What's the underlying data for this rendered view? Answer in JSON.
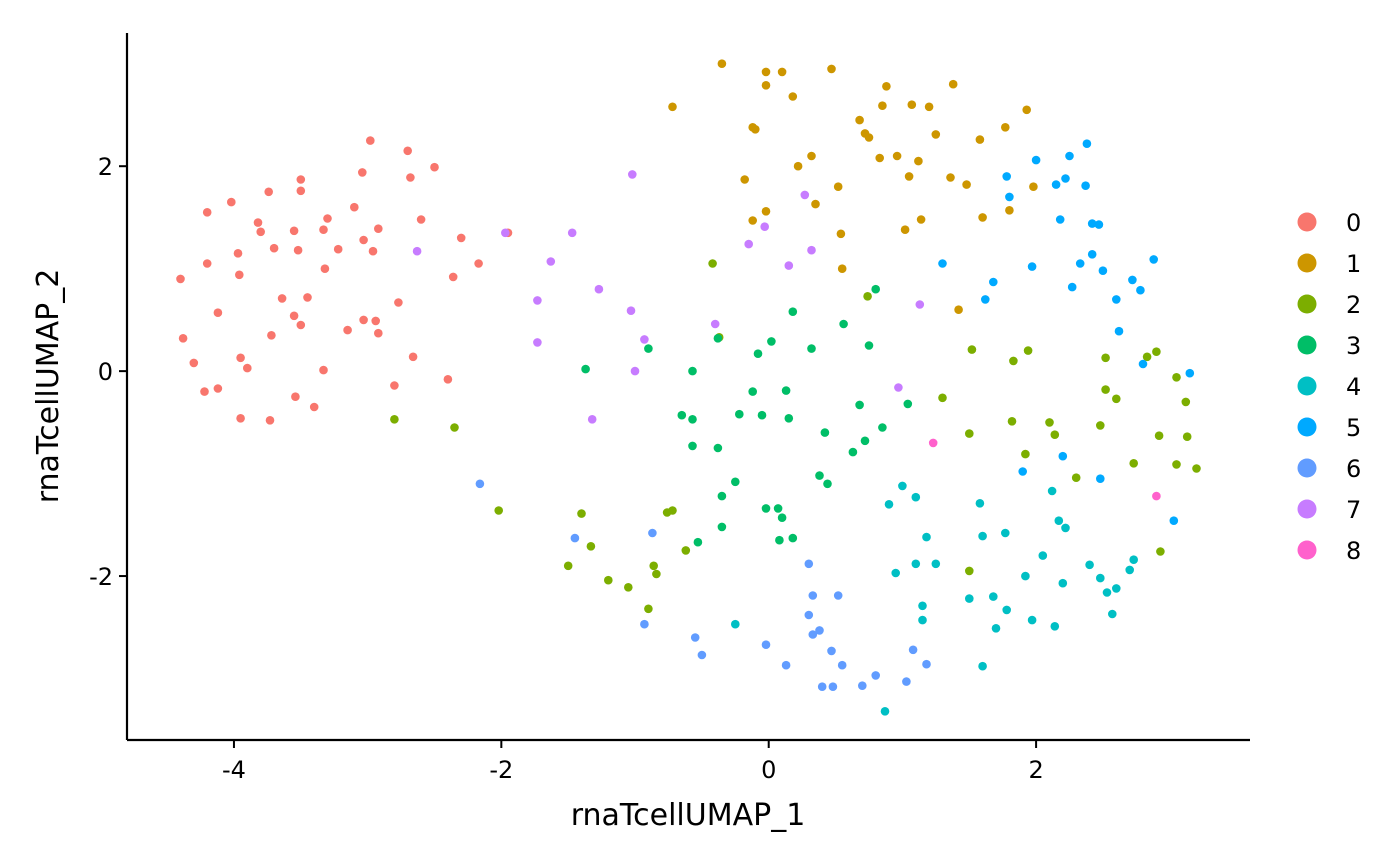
{
  "chart_data": {
    "type": "scatter",
    "title": "",
    "xlabel": "rnaTcellUMAP_1",
    "ylabel": "rnaTcellUMAP_2",
    "xlim": [
      -4.8,
      3.6
    ],
    "ylim": [
      -3.6,
      3.3
    ],
    "x_ticks": [
      -4,
      -2,
      0,
      2
    ],
    "x_tick_labels": [
      "-4",
      "-2",
      "0",
      "2"
    ],
    "y_ticks": [
      -2,
      0,
      2
    ],
    "y_tick_labels": [
      "-2",
      "0",
      "2"
    ],
    "grid": false,
    "legend_position": "right",
    "series": [
      {
        "name": "0",
        "color": "#F8766D",
        "points": [
          [
            -4.4,
            0.9
          ],
          [
            -4.38,
            0.32
          ],
          [
            -4.3,
            0.08
          ],
          [
            -4.22,
            -0.2
          ],
          [
            -4.2,
            1.05
          ],
          [
            -4.2,
            1.55
          ],
          [
            -4.12,
            0.57
          ],
          [
            -4.12,
            -0.17
          ],
          [
            -4.02,
            1.65
          ],
          [
            -3.97,
            1.15
          ],
          [
            -3.96,
            0.94
          ],
          [
            -3.95,
            0.13
          ],
          [
            -3.95,
            -0.46
          ],
          [
            -3.9,
            0.03
          ],
          [
            -3.82,
            1.45
          ],
          [
            -3.8,
            1.36
          ],
          [
            -3.74,
            1.75
          ],
          [
            -3.72,
            0.35
          ],
          [
            -3.73,
            -0.48
          ],
          [
            -3.7,
            1.2
          ],
          [
            -3.64,
            0.71
          ],
          [
            -3.55,
            0.54
          ],
          [
            -3.55,
            1.37
          ],
          [
            -3.54,
            -0.25
          ],
          [
            -3.52,
            1.18
          ],
          [
            -3.5,
            0.45
          ],
          [
            -3.5,
            1.87
          ],
          [
            -3.5,
            1.76
          ],
          [
            -3.45,
            0.72
          ],
          [
            -3.4,
            -0.35
          ],
          [
            -3.33,
            1.38
          ],
          [
            -3.33,
            0.01
          ],
          [
            -3.32,
            1.0
          ],
          [
            -3.3,
            1.49
          ],
          [
            -3.22,
            1.19
          ],
          [
            -3.15,
            0.4
          ],
          [
            -3.1,
            1.6
          ],
          [
            -3.04,
            1.94
          ],
          [
            -3.03,
            1.28
          ],
          [
            -3.03,
            0.5
          ],
          [
            -2.98,
            2.25
          ],
          [
            -2.96,
            1.17
          ],
          [
            -2.94,
            0.49
          ],
          [
            -2.92,
            1.39
          ],
          [
            -2.92,
            0.37
          ],
          [
            -2.77,
            0.67
          ],
          [
            -2.8,
            -0.14
          ],
          [
            -2.7,
            2.15
          ],
          [
            -2.68,
            1.89
          ],
          [
            -2.66,
            0.14
          ],
          [
            -2.6,
            1.48
          ],
          [
            -2.5,
            1.99
          ],
          [
            -2.4,
            -0.08
          ],
          [
            -2.36,
            0.92
          ],
          [
            -2.3,
            1.3
          ],
          [
            -2.17,
            1.05
          ],
          [
            -1.95,
            1.35
          ]
        ]
      },
      {
        "name": "1",
        "color": "#CD9600",
        "points": [
          [
            -0.72,
            2.58
          ],
          [
            -0.35,
            3.0
          ],
          [
            -0.18,
            1.87
          ],
          [
            -0.12,
            2.38
          ],
          [
            -0.1,
            2.36
          ],
          [
            -0.12,
            1.47
          ],
          [
            -0.02,
            2.92
          ],
          [
            -0.02,
            2.79
          ],
          [
            -0.02,
            1.56
          ],
          [
            0.1,
            2.92
          ],
          [
            0.18,
            2.68
          ],
          [
            0.22,
            2.0
          ],
          [
            0.32,
            2.1
          ],
          [
            0.35,
            1.63
          ],
          [
            0.47,
            2.95
          ],
          [
            0.52,
            1.8
          ],
          [
            0.54,
            1.34
          ],
          [
            0.55,
            1.0
          ],
          [
            0.68,
            2.45
          ],
          [
            0.72,
            2.32
          ],
          [
            0.75,
            2.28
          ],
          [
            0.83,
            2.08
          ],
          [
            0.85,
            2.59
          ],
          [
            0.88,
            2.78
          ],
          [
            0.96,
            2.1
          ],
          [
            1.02,
            1.38
          ],
          [
            1.05,
            1.9
          ],
          [
            1.07,
            2.6
          ],
          [
            1.12,
            2.05
          ],
          [
            1.14,
            1.48
          ],
          [
            1.2,
            2.58
          ],
          [
            1.25,
            2.31
          ],
          [
            1.36,
            1.89
          ],
          [
            1.38,
            2.8
          ],
          [
            1.42,
            0.6
          ],
          [
            1.48,
            1.82
          ],
          [
            1.58,
            2.26
          ],
          [
            1.6,
            1.5
          ],
          [
            1.77,
            2.38
          ],
          [
            1.8,
            1.57
          ],
          [
            1.98,
            1.8
          ],
          [
            1.93,
            2.55
          ]
        ]
      },
      {
        "name": "2",
        "color": "#7CAE00",
        "points": [
          [
            -2.8,
            -0.47
          ],
          [
            -2.35,
            -0.55
          ],
          [
            -2.02,
            -1.36
          ],
          [
            -1.5,
            -1.9
          ],
          [
            -1.4,
            -1.39
          ],
          [
            -1.33,
            -1.71
          ],
          [
            -1.2,
            -2.04
          ],
          [
            -1.05,
            -2.11
          ],
          [
            -0.9,
            -2.32
          ],
          [
            -0.86,
            -1.9
          ],
          [
            -0.84,
            -1.98
          ],
          [
            -0.76,
            -1.38
          ],
          [
            -0.72,
            -1.36
          ],
          [
            -0.62,
            -1.75
          ],
          [
            -0.42,
            1.05
          ],
          [
            -0.37,
            0.33
          ],
          [
            0.74,
            0.73
          ],
          [
            1.3,
            -0.26
          ],
          [
            1.5,
            -0.61
          ],
          [
            1.52,
            0.21
          ],
          [
            1.5,
            -1.95
          ],
          [
            1.83,
            0.1
          ],
          [
            1.82,
            -0.49
          ],
          [
            1.92,
            -0.81
          ],
          [
            1.94,
            0.2
          ],
          [
            2.1,
            -0.5
          ],
          [
            2.14,
            -0.62
          ],
          [
            2.3,
            -1.04
          ],
          [
            2.48,
            -0.53
          ],
          [
            2.52,
            0.13
          ],
          [
            2.52,
            -0.18
          ],
          [
            2.6,
            -0.27
          ],
          [
            2.73,
            -0.9
          ],
          [
            2.83,
            0.14
          ],
          [
            2.9,
            0.19
          ],
          [
            2.92,
            -0.63
          ],
          [
            2.93,
            -1.76
          ],
          [
            3.05,
            -0.06
          ],
          [
            3.05,
            -0.91
          ],
          [
            3.12,
            -0.3
          ],
          [
            3.13,
            -0.64
          ],
          [
            3.2,
            -0.95
          ]
        ]
      },
      {
        "name": "3",
        "color": "#00BE67",
        "points": [
          [
            -1.37,
            0.02
          ],
          [
            -0.9,
            0.22
          ],
          [
            -0.65,
            -0.43
          ],
          [
            -0.57,
            -0.47
          ],
          [
            -0.57,
            -0.73
          ],
          [
            -0.57,
            0.0
          ],
          [
            -0.53,
            -1.67
          ],
          [
            -0.38,
            0.32
          ],
          [
            -0.38,
            -0.75
          ],
          [
            -0.35,
            -1.22
          ],
          [
            -0.35,
            -1.52
          ],
          [
            -0.25,
            -1.08
          ],
          [
            -0.22,
            -0.42
          ],
          [
            -0.12,
            -0.2
          ],
          [
            -0.08,
            0.17
          ],
          [
            -0.05,
            -0.43
          ],
          [
            -0.02,
            -1.34
          ],
          [
            0.02,
            0.29
          ],
          [
            0.07,
            -1.34
          ],
          [
            0.08,
            -1.65
          ],
          [
            0.1,
            -1.43
          ],
          [
            0.13,
            -0.19
          ],
          [
            0.15,
            -0.46
          ],
          [
            0.18,
            0.58
          ],
          [
            0.18,
            -1.63
          ],
          [
            0.32,
            0.22
          ],
          [
            0.38,
            -1.02
          ],
          [
            0.42,
            -0.6
          ],
          [
            0.44,
            -1.1
          ],
          [
            0.56,
            0.46
          ],
          [
            0.63,
            -0.79
          ],
          [
            0.68,
            -0.33
          ],
          [
            0.72,
            -0.68
          ],
          [
            0.75,
            0.25
          ],
          [
            0.8,
            0.8
          ],
          [
            0.85,
            -0.55
          ],
          [
            1.04,
            -0.32
          ]
        ]
      },
      {
        "name": "4",
        "color": "#00BFC4",
        "points": [
          [
            -0.25,
            -2.47
          ],
          [
            0.87,
            -3.32
          ],
          [
            0.9,
            -1.3
          ],
          [
            0.95,
            -1.97
          ],
          [
            1.0,
            -1.12
          ],
          [
            1.1,
            -1.23
          ],
          [
            1.1,
            -1.88
          ],
          [
            1.15,
            -2.29
          ],
          [
            1.15,
            -2.43
          ],
          [
            1.18,
            -1.62
          ],
          [
            1.25,
            -1.88
          ],
          [
            1.5,
            -2.22
          ],
          [
            1.58,
            -1.29
          ],
          [
            1.6,
            -1.61
          ],
          [
            1.6,
            -2.88
          ],
          [
            1.68,
            -2.2
          ],
          [
            1.7,
            -2.51
          ],
          [
            1.77,
            -1.58
          ],
          [
            1.78,
            -2.33
          ],
          [
            1.92,
            -2.0
          ],
          [
            1.97,
            -2.43
          ],
          [
            2.05,
            -1.8
          ],
          [
            2.12,
            -1.17
          ],
          [
            2.14,
            -2.49
          ],
          [
            2.17,
            -1.46
          ],
          [
            2.2,
            -2.07
          ],
          [
            2.22,
            -1.53
          ],
          [
            2.4,
            -1.89
          ],
          [
            2.48,
            -2.02
          ],
          [
            2.53,
            -2.16
          ],
          [
            2.57,
            -2.37
          ],
          [
            2.6,
            -2.12
          ],
          [
            2.7,
            -1.94
          ],
          [
            2.73,
            -1.84
          ]
        ]
      },
      {
        "name": "5",
        "color": "#00A9FF",
        "points": [
          [
            1.3,
            1.05
          ],
          [
            1.62,
            0.7
          ],
          [
            1.68,
            0.87
          ],
          [
            1.78,
            1.9
          ],
          [
            1.8,
            1.7
          ],
          [
            1.97,
            1.02
          ],
          [
            2.0,
            2.06
          ],
          [
            2.15,
            1.82
          ],
          [
            2.18,
            1.48
          ],
          [
            2.22,
            1.88
          ],
          [
            2.25,
            2.1
          ],
          [
            2.27,
            0.82
          ],
          [
            2.33,
            1.05
          ],
          [
            2.37,
            1.81
          ],
          [
            2.38,
            2.22
          ],
          [
            2.42,
            1.14
          ],
          [
            2.42,
            1.44
          ],
          [
            2.47,
            1.43
          ],
          [
            2.5,
            0.98
          ],
          [
            2.6,
            0.7
          ],
          [
            2.62,
            0.39
          ],
          [
            2.72,
            0.89
          ],
          [
            2.78,
            0.79
          ],
          [
            2.8,
            0.07
          ],
          [
            2.88,
            1.09
          ],
          [
            3.03,
            -1.46
          ],
          [
            3.15,
            -0.02
          ],
          [
            1.9,
            -0.98
          ],
          [
            2.2,
            -0.83
          ],
          [
            2.48,
            -1.05
          ]
        ]
      },
      {
        "name": "6",
        "color": "#619CFF",
        "points": [
          [
            -2.16,
            -1.1
          ],
          [
            -1.45,
            -1.63
          ],
          [
            -0.93,
            -2.47
          ],
          [
            -0.87,
            -1.58
          ],
          [
            -0.55,
            -2.6
          ],
          [
            -0.5,
            -2.77
          ],
          [
            -0.02,
            -2.67
          ],
          [
            0.13,
            -2.87
          ],
          [
            0.3,
            -1.88
          ],
          [
            0.3,
            -2.38
          ],
          [
            0.33,
            -2.19
          ],
          [
            0.33,
            -2.57
          ],
          [
            0.38,
            -2.53
          ],
          [
            0.4,
            -3.08
          ],
          [
            0.47,
            -2.73
          ],
          [
            0.48,
            -3.08
          ],
          [
            0.52,
            -2.19
          ],
          [
            0.55,
            -2.87
          ],
          [
            0.7,
            -3.07
          ],
          [
            0.8,
            -2.97
          ],
          [
            1.03,
            -3.03
          ],
          [
            1.08,
            -2.72
          ],
          [
            1.18,
            -2.86
          ]
        ]
      },
      {
        "name": "7",
        "color": "#C77CFF",
        "points": [
          [
            -2.63,
            1.17
          ],
          [
            -1.97,
            1.35
          ],
          [
            -1.73,
            0.69
          ],
          [
            -1.73,
            0.28
          ],
          [
            -1.63,
            1.07
          ],
          [
            -1.47,
            1.35
          ],
          [
            -1.32,
            -0.47
          ],
          [
            -1.27,
            0.8
          ],
          [
            -1.02,
            1.92
          ],
          [
            -1.03,
            0.59
          ],
          [
            -1.0,
            0.0
          ],
          [
            -0.93,
            0.31
          ],
          [
            -0.4,
            0.46
          ],
          [
            -0.15,
            1.24
          ],
          [
            -0.03,
            1.41
          ],
          [
            0.15,
            1.03
          ],
          [
            0.27,
            1.72
          ],
          [
            0.32,
            1.18
          ],
          [
            0.97,
            -0.16
          ],
          [
            1.13,
            0.65
          ]
        ]
      },
      {
        "name": "8",
        "color": "#FF61CC",
        "points": [
          [
            1.23,
            -0.7
          ],
          [
            2.9,
            -1.22
          ]
        ]
      }
    ]
  }
}
